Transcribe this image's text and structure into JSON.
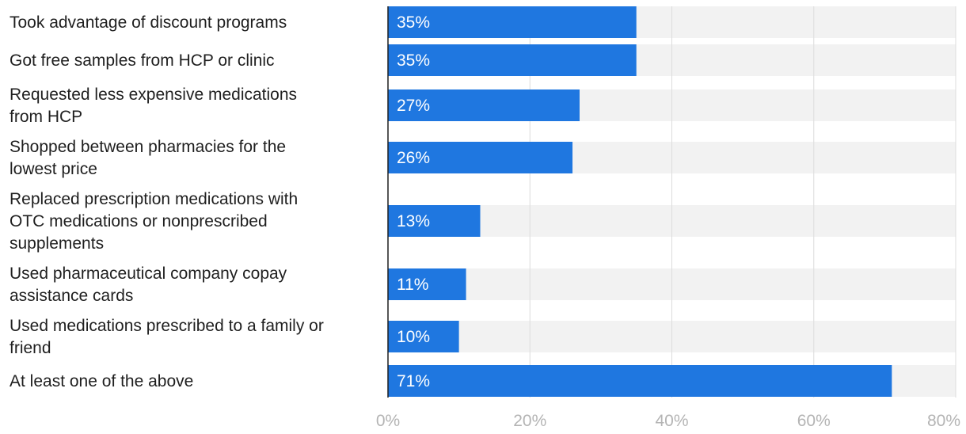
{
  "chart_data": {
    "type": "bar",
    "orientation": "horizontal",
    "categories": [
      [
        "Took advantage of discount programs"
      ],
      [
        "Got free samples from HCP or clinic"
      ],
      [
        "Requested less expensive medications",
        "from HCP"
      ],
      [
        "Shopped between pharmacies for the",
        "lowest price"
      ],
      [
        "Replaced prescription medications with",
        "OTC medications or nonprescribed",
        "supplements"
      ],
      [
        "Used pharmaceutical company copay",
        "assistance cards"
      ],
      [
        "Used medications prescribed to a family or",
        "friend"
      ],
      [
        "At least one of the above"
      ]
    ],
    "values": [
      35,
      35,
      27,
      26,
      13,
      11,
      10,
      71
    ],
    "value_labels": [
      "35%",
      "35%",
      "27%",
      "26%",
      "13%",
      "11%",
      "10%",
      "71%"
    ],
    "xlim": [
      0,
      80
    ],
    "xticks": [
      0,
      20,
      40,
      60,
      80
    ],
    "xtick_labels": [
      "0%",
      "20%",
      "40%",
      "60%",
      "80%"
    ],
    "grid": true,
    "colors": {
      "bar": "#1f77e0",
      "track": "#f2f2f2",
      "grid": "#dcdcdc",
      "axis": "#1f1f1f"
    }
  }
}
